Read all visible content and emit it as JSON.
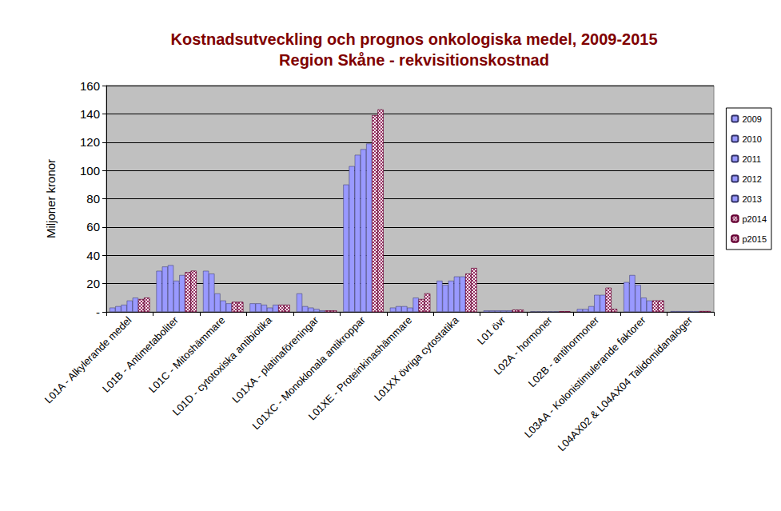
{
  "chart_data": {
    "type": "bar",
    "title": "Kostnadsutveckling och prognos onkologiska medel, 2009-2015",
    "subtitle": "Region Skåne - rekvisitionskostnad",
    "y_label": "Miljoner kronor",
    "categories": [
      "L01A - Alkylerande medel",
      "L01B - Antimetaboliter",
      "L01C - Mitoshämmare",
      "L01D - cytotoxiska antibiotika",
      "L01XA - platinaföreningar",
      "L01XC - Monoklonala antikroppar",
      "L01XE - Proteinkinashämmare",
      "L01XX övriga cytostatika",
      "L01 övr",
      "L02A - hormoner",
      "L02B - antihormoner",
      "L03AA - Kolonistimulerande faktorer",
      "L04AX02 & L04AX04 Talidomidanaloger"
    ],
    "series": [
      {
        "name": "2009",
        "color": "#9999ff",
        "values": [
          3,
          29,
          29,
          6,
          13,
          90,
          3,
          22,
          1,
          0.3,
          2,
          21,
          0.5
        ]
      },
      {
        "name": "2010",
        "color": "#9999ff",
        "values": [
          4,
          32,
          27,
          6,
          4,
          103,
          4,
          19,
          1,
          0.3,
          2,
          26,
          0.5
        ]
      },
      {
        "name": "2011",
        "color": "#9999ff",
        "values": [
          5,
          33,
          13,
          5,
          3,
          111,
          4,
          22,
          1,
          0.3,
          4,
          19,
          0.5
        ]
      },
      {
        "name": "2012",
        "color": "#9999ff",
        "values": [
          8,
          22,
          8,
          3,
          2,
          115,
          3,
          25,
          1,
          0.3,
          12,
          10,
          0.5
        ]
      },
      {
        "name": "2013",
        "color": "#9999ff",
        "values": [
          10,
          26,
          6,
          5,
          1,
          119,
          10,
          25,
          1,
          0.3,
          12,
          8,
          0.5
        ]
      },
      {
        "name": "p2014",
        "color": "#993366",
        "marker": "checkered",
        "values": [
          9,
          28,
          7,
          5,
          1,
          139,
          9,
          27,
          1.5,
          0.3,
          17,
          8,
          0.5
        ]
      },
      {
        "name": "p2015",
        "color": "#993366",
        "marker": "checkered",
        "values": [
          10,
          29,
          7,
          5,
          1,
          143,
          13,
          31,
          1.5,
          0.3,
          2,
          8,
          0.5
        ]
      }
    ],
    "ylim": [
      0,
      160
    ],
    "yticks": [
      {
        "value": 0,
        "label": "-"
      },
      20,
      40,
      60,
      80,
      100,
      120,
      140,
      160
    ],
    "grid": true,
    "legend": "right"
  }
}
